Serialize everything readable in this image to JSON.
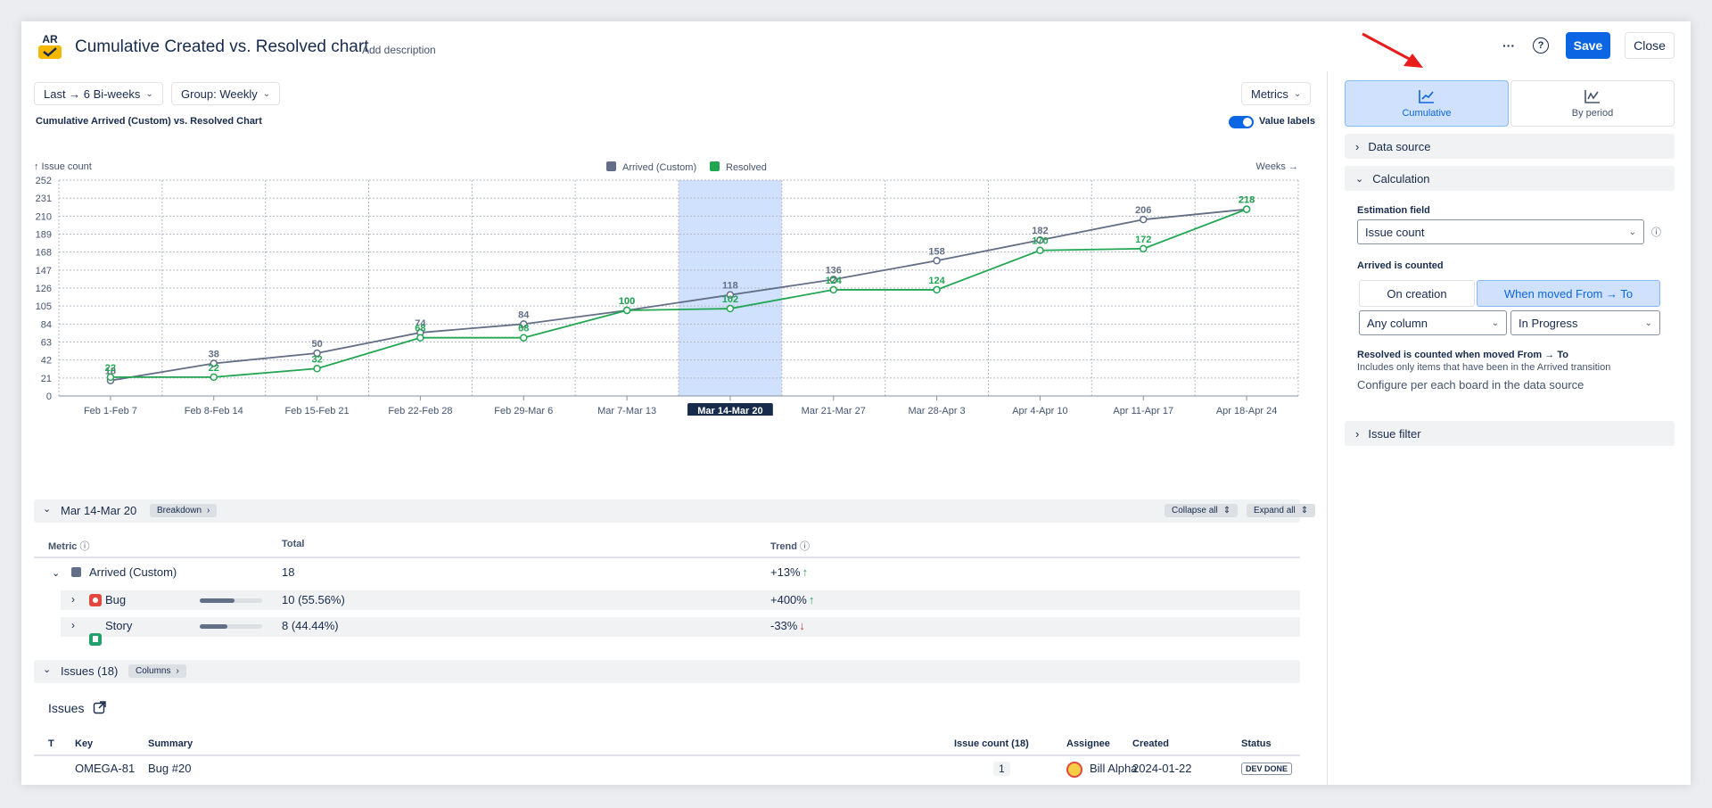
{
  "header": {
    "logo_text": "AR",
    "title": "Cumulative Created vs. Resolved chart",
    "add_description": "Add description",
    "more_label": "···",
    "help_label": "?",
    "save_label": "Save",
    "close_label": "Close"
  },
  "toolbar": {
    "range_label": "Last → 6 Bi-weeks",
    "group_label": "Group: Weekly",
    "metrics_label": "Metrics"
  },
  "chart_header": {
    "title": "Cumulative Arrived (Custom) vs. Resolved Chart",
    "value_labels_label": "Value labels",
    "value_labels_on": true,
    "y_axis_caption": "↑ Issue count",
    "x_axis_caption": "Weeks →"
  },
  "chart_data": {
    "type": "line",
    "ylabel": "Issue count",
    "xlabel": "Weeks",
    "categories": [
      "Feb 1-Feb 7",
      "Feb 8-Feb 14",
      "Feb 15-Feb 21",
      "Feb 22-Feb 28",
      "Feb 29-Mar 6",
      "Mar 7-Mar 13",
      "Mar 14-Mar 20",
      "Mar 21-Mar 27",
      "Mar 28-Apr 3",
      "Apr 4-Apr 10",
      "Apr 11-Apr 17",
      "Apr 18-Apr 24"
    ],
    "yticks": [
      0,
      21,
      42,
      63,
      84,
      105,
      126,
      147,
      168,
      189,
      210,
      231,
      252
    ],
    "ylim": [
      0,
      252
    ],
    "grid": true,
    "legend_position": "top-center",
    "highlighted_category": "Mar 14-Mar 20",
    "series": [
      {
        "name": "Arrived (Custom)",
        "color": "#626f86",
        "values": [
          18,
          38,
          50,
          74,
          84,
          100,
          118,
          136,
          158,
          182,
          206,
          218
        ]
      },
      {
        "name": "Resolved",
        "color": "#22a653",
        "values": [
          22,
          22,
          32,
          68,
          68,
          100,
          102,
          124,
          124,
          170,
          172,
          218
        ]
      }
    ]
  },
  "breakdown": {
    "period": "Mar 14-Mar 20",
    "breakdown_tag": "Breakdown",
    "collapse_all": "Collapse all",
    "expand_all": "Expand all",
    "col_metric": "Metric",
    "col_total": "Total",
    "col_trend": "Trend",
    "rows": [
      {
        "label": "Arrived (Custom)",
        "total": "18",
        "trend": "+13%",
        "arrow": "↑",
        "arrow_color": "#22a06b"
      },
      {
        "label": "Bug",
        "total": "10 (55.56%)",
        "trend": "+400%",
        "arrow": "↑",
        "arrow_color": "#22a06b",
        "fraction": 0.5556
      },
      {
        "label": "Story",
        "total": "8 (44.44%)",
        "trend": "-33%",
        "arrow": "↓",
        "arrow_color": "#c9372c",
        "fraction": 0.4444
      }
    ]
  },
  "issues": {
    "section_label": "Issues (18)",
    "columns_tag": "Columns",
    "heading": "Issues",
    "col_t": "T",
    "col_key": "Key",
    "col_summary": "Summary",
    "col_count": "Issue count (18)",
    "col_assignee": "Assignee",
    "col_created": "Created",
    "col_status": "Status",
    "rows": [
      {
        "key": "OMEGA-81",
        "summary": "Bug #20",
        "count": "1",
        "assignee": "Bill Alpha",
        "created": "2024-01-22",
        "status": "DEV DONE"
      }
    ]
  },
  "right_panel": {
    "view_cumulative": "Cumulative",
    "view_by_period": "By period",
    "data_source": "Data source",
    "calculation": "Calculation",
    "estimation_label": "Estimation field",
    "estimation_value": "Issue count",
    "arrived_label": "Arrived is counted",
    "on_creation": "On creation",
    "when_moved": "When moved From → To",
    "from_value": "Any column",
    "to_value": "In Progress",
    "resolved_title": "Resolved is counted when moved From → To",
    "resolved_sub": "Includes only items that have been in the Arrived transition",
    "configure_note": "Configure per each board in the data source",
    "issue_filter": "Issue filter"
  }
}
